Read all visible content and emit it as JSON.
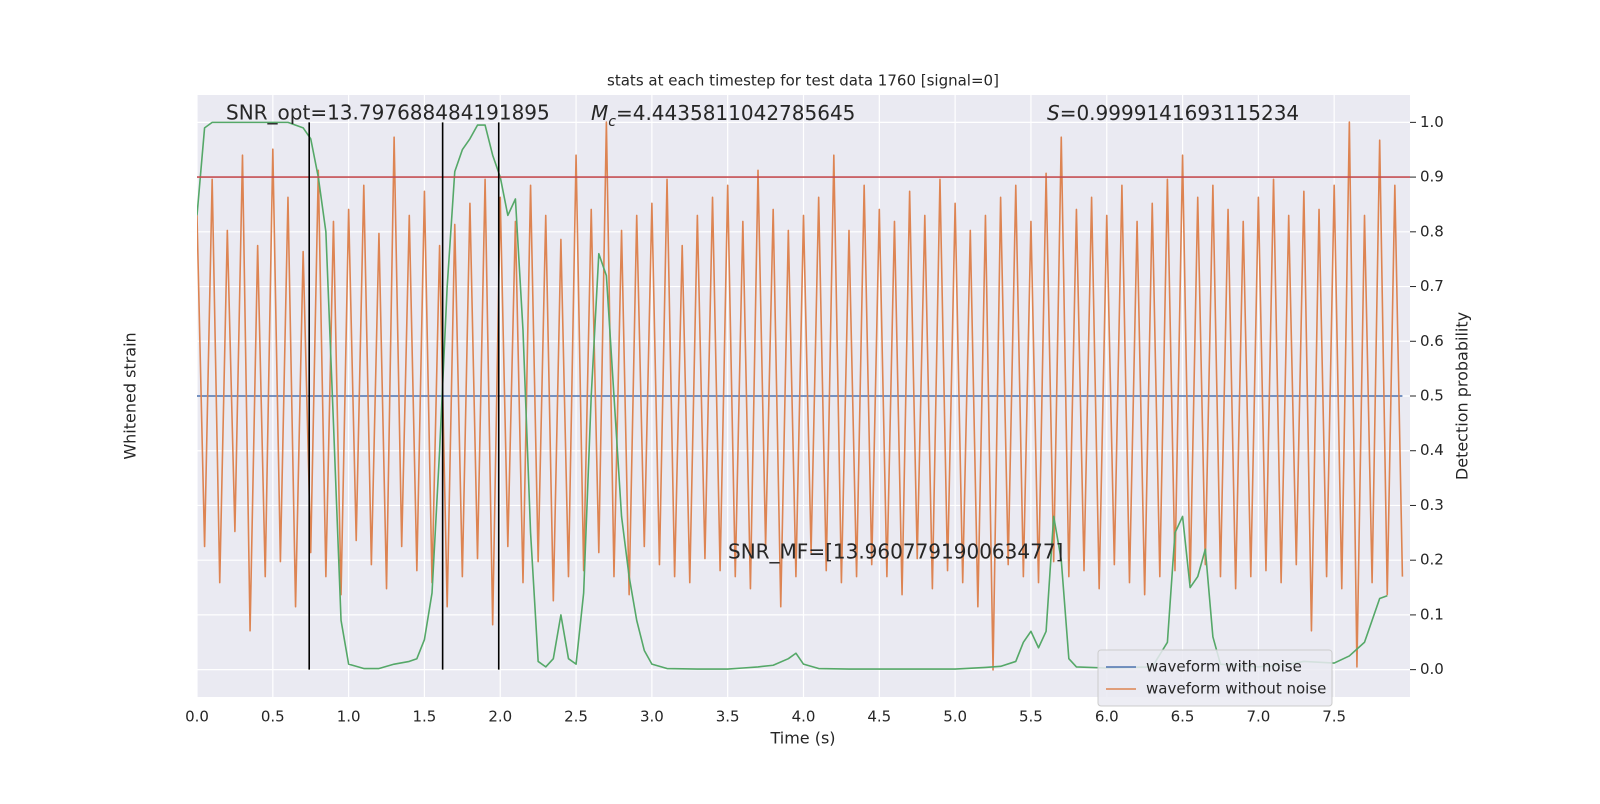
{
  "chart_data": {
    "type": "line",
    "title": "stats at each timestep for test data 1760 [signal=0]",
    "xlabel": "Time (s)",
    "ylabel": "Whitened strain",
    "y2label": "Detection probability",
    "xlim": [
      0,
      8
    ],
    "ylim": [
      -1,
      1
    ],
    "y2lim": [
      -0.05,
      1.05
    ],
    "xticks": [
      {
        "value": 0,
        "label": "0.0"
      },
      0.5,
      {
        "value": 1,
        "label": "1.0"
      },
      1.5,
      {
        "value": 2,
        "label": "2.0"
      },
      2.5,
      {
        "value": 3,
        "label": "3.0"
      },
      3.5,
      {
        "value": 4,
        "label": "4.0"
      },
      4.5,
      {
        "value": 5,
        "label": "5.0"
      },
      5.5,
      {
        "value": 6,
        "label": "6.0"
      },
      6.5,
      {
        "value": 7,
        "label": "7.0"
      },
      7.5
    ],
    "y2ticks": [
      {
        "value": 0,
        "label": "0.0"
      },
      0.1,
      0.2,
      0.3,
      0.4,
      0.5,
      0.6,
      0.7,
      0.8,
      0.9,
      {
        "value": 1,
        "label": "1.0"
      }
    ],
    "grid": true,
    "legend": "lower right",
    "annotations": [
      {
        "text": "SNR_opt=13.797688484191895"
      },
      {
        "symbol": "M",
        "subscript": "c",
        "text": "=4.4435811042785645"
      },
      {
        "symbol": "S",
        "text": "=0.9999141693115234"
      },
      {
        "text": "SNR_MF=[13.960779190063477]"
      }
    ],
    "threshold": {
      "value": 0.9,
      "color": "#c44e52"
    },
    "markers": {
      "x": [
        0.74,
        1.62,
        1.99
      ],
      "color": "#000000"
    },
    "series": [
      {
        "name": "waveform with noise",
        "color": "#4c72b0",
        "x": [
          0,
          7.95
        ],
        "values": [
          0,
          0
        ]
      },
      {
        "name": "waveform without noise",
        "color": "#dd8452",
        "x": [
          0,
          0.05,
          0.1,
          0.15,
          0.2,
          0.25,
          0.3,
          0.35,
          0.4,
          0.45,
          0.5,
          0.55,
          0.6,
          0.65,
          0.7,
          0.75,
          0.8,
          0.85,
          0.9,
          0.95,
          1,
          1.05,
          1.1,
          1.15,
          1.2,
          1.25,
          1.3,
          1.35,
          1.4,
          1.45,
          1.5,
          1.55,
          1.6,
          1.65,
          1.7,
          1.75,
          1.8,
          1.85,
          1.9,
          1.95,
          2,
          2.05,
          2.1,
          2.15,
          2.2,
          2.25,
          2.3,
          2.35,
          2.4,
          2.45,
          2.5,
          2.55,
          2.6,
          2.65,
          2.7,
          2.75,
          2.8,
          2.85,
          2.9,
          2.95,
          3,
          3.05,
          3.1,
          3.15,
          3.2,
          3.25,
          3.3,
          3.35,
          3.4,
          3.45,
          3.5,
          3.55,
          3.6,
          3.65,
          3.7,
          3.75,
          3.8,
          3.85,
          3.9,
          3.95,
          4,
          4.05,
          4.1,
          4.15,
          4.2,
          4.25,
          4.3,
          4.35,
          4.4,
          4.45,
          4.5,
          4.55,
          4.6,
          4.65,
          4.7,
          4.75,
          4.8,
          4.85,
          4.9,
          4.95,
          5,
          5.05,
          5.1,
          5.15,
          5.2,
          5.25,
          5.3,
          5.35,
          5.4,
          5.45,
          5.5,
          5.55,
          5.6,
          5.65,
          5.7,
          5.75,
          5.8,
          5.85,
          5.9,
          5.95,
          6,
          6.05,
          6.1,
          6.15,
          6.2,
          6.25,
          6.3,
          6.35,
          6.4,
          6.45,
          6.5,
          6.55,
          6.6,
          6.65,
          6.7,
          6.75,
          6.8,
          6.85,
          6.9,
          6.95,
          7,
          7.05,
          7.1,
          7.15,
          7.2,
          7.25,
          7.3,
          7.35,
          7.4,
          7.45,
          7.5,
          7.55,
          7.6,
          7.65,
          7.7,
          7.75,
          7.8,
          7.85,
          7.9,
          7.95
        ],
        "values": [
          0.6,
          -0.5,
          0.72,
          -0.62,
          0.55,
          -0.45,
          0.8,
          -0.78,
          0.5,
          -0.6,
          0.82,
          -0.55,
          0.66,
          -0.7,
          0.48,
          -0.52,
          0.75,
          -0.6,
          0.58,
          -0.66,
          0.62,
          -0.48,
          0.7,
          -0.56,
          0.54,
          -0.64,
          0.86,
          -0.5,
          0.6,
          -0.58,
          0.68,
          -0.62,
          0.5,
          -0.7,
          0.57,
          -0.6,
          0.64,
          -0.54,
          0.72,
          -0.76,
          0.66,
          -0.5,
          0.58,
          -0.62,
          0.7,
          -0.55,
          0.6,
          -0.68,
          0.52,
          -0.6,
          0.8,
          -0.58,
          0.62,
          -0.52,
          0.91,
          -0.6,
          0.55,
          -0.66,
          0.6,
          -0.5,
          0.64,
          -0.56,
          0.72,
          -0.6,
          0.5,
          -0.62,
          0.6,
          -0.54,
          0.66,
          -0.58,
          0.7,
          -0.6,
          0.58,
          -0.64,
          0.75,
          -0.5,
          0.62,
          -0.7,
          0.55,
          -0.6,
          0.6,
          -0.52,
          0.66,
          -0.58,
          0.8,
          -0.62,
          0.55,
          -0.6,
          0.7,
          -0.56,
          0.62,
          -0.6,
          0.58,
          -0.66,
          0.68,
          -0.54,
          0.6,
          -0.64,
          0.72,
          -0.58,
          0.64,
          -0.62,
          0.55,
          -0.7,
          0.6,
          -0.91,
          0.66,
          -0.56,
          0.7,
          -0.6,
          0.58,
          -0.62,
          0.74,
          -0.55,
          0.86,
          -0.6,
          0.62,
          -0.58,
          0.66,
          -0.64,
          0.6,
          -0.56,
          0.7,
          -0.62,
          0.58,
          -0.66,
          0.64,
          -0.6,
          0.72,
          -0.58,
          0.8,
          -0.62,
          0.66,
          -0.56,
          0.7,
          -0.6,
          0.62,
          -0.64,
          0.58,
          -0.6,
          0.66,
          -0.58,
          0.72,
          -0.62,
          0.6,
          -0.56,
          0.68,
          -0.78,
          0.62,
          -0.6,
          0.7,
          -0.64,
          0.91,
          -0.9,
          0.6,
          -0.62,
          0.85,
          -0.66,
          0.7,
          -0.6
        ]
      },
      {
        "name": "detection probability",
        "color": "#55a868",
        "axis": "y2",
        "in_legend": false,
        "x": [
          0,
          0.05,
          0.1,
          0.2,
          0.3,
          0.4,
          0.5,
          0.6,
          0.65,
          0.7,
          0.75,
          0.8,
          0.85,
          0.9,
          0.95,
          1,
          1.1,
          1.2,
          1.3,
          1.4,
          1.45,
          1.5,
          1.55,
          1.6,
          1.65,
          1.7,
          1.75,
          1.8,
          1.85,
          1.9,
          1.95,
          2,
          2.05,
          2.1,
          2.15,
          2.2,
          2.25,
          2.3,
          2.35,
          2.4,
          2.45,
          2.5,
          2.55,
          2.6,
          2.65,
          2.7,
          2.75,
          2.8,
          2.85,
          2.9,
          2.95,
          3,
          3.1,
          3.3,
          3.5,
          3.6,
          3.7,
          3.8,
          3.9,
          3.95,
          4,
          4.1,
          4.3,
          4.5,
          5,
          5.2,
          5.3,
          5.4,
          5.45,
          5.5,
          5.55,
          5.6,
          5.65,
          5.7,
          5.75,
          5.8,
          6,
          6.3,
          6.4,
          6.45,
          6.5,
          6.55,
          6.6,
          6.65,
          6.7,
          6.75,
          7,
          7.2,
          7.3,
          7.5,
          7.6,
          7.7,
          7.75,
          7.8,
          7.85
        ],
        "values": [
          0.83,
          0.99,
          1,
          1,
          1,
          1,
          1,
          1,
          0.995,
          0.99,
          0.97,
          0.9,
          0.8,
          0.45,
          0.09,
          0.01,
          0.002,
          0.002,
          0.01,
          0.015,
          0.02,
          0.055,
          0.14,
          0.4,
          0.7,
          0.91,
          0.95,
          0.97,
          0.995,
          0.995,
          0.94,
          0.9,
          0.83,
          0.86,
          0.62,
          0.25,
          0.015,
          0.005,
          0.02,
          0.1,
          0.02,
          0.01,
          0.14,
          0.5,
          0.76,
          0.72,
          0.5,
          0.28,
          0.17,
          0.09,
          0.035,
          0.01,
          0.002,
          0.001,
          0.001,
          0.003,
          0.005,
          0.008,
          0.02,
          0.03,
          0.01,
          0.002,
          0.001,
          0.001,
          0.001,
          0.004,
          0.006,
          0.015,
          0.05,
          0.07,
          0.04,
          0.07,
          0.28,
          0.2,
          0.02,
          0.005,
          0.003,
          0.005,
          0.05,
          0.25,
          0.28,
          0.15,
          0.17,
          0.22,
          0.06,
          0.01,
          0.005,
          0.01,
          0.015,
          0.012,
          0.025,
          0.05,
          0.09,
          0.13,
          0.135
        ]
      }
    ]
  }
}
